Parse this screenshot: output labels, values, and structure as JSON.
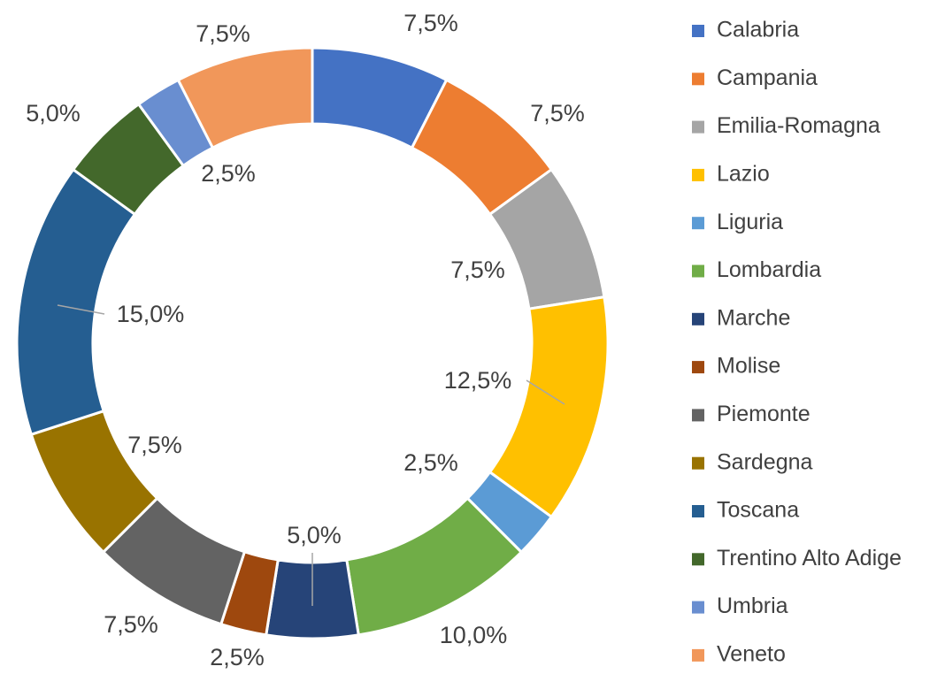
{
  "chart_data": {
    "type": "donut",
    "categories": [
      "Calabria",
      "Campania",
      "Emilia-Romagna",
      "Lazio",
      "Liguria",
      "Lombardia",
      "Marche",
      "Molise",
      "Piemonte",
      "Sardegna",
      "Toscana",
      "Trentino Alto Adige",
      "Umbria",
      "Veneto"
    ],
    "values": [
      7.5,
      7.5,
      7.5,
      12.5,
      2.5,
      10,
      5,
      2.5,
      7.5,
      7.5,
      15,
      5,
      2.5,
      7.5
    ],
    "value_labels": [
      "7,5%",
      "7,5%",
      "7,5%",
      "12,5%",
      "2,5%",
      "10,0%",
      "5,0%",
      "2,5%",
      "7,5%",
      "7,5%",
      "15,0%",
      "5,0%",
      "2,5%",
      "7,5%"
    ],
    "colors": [
      "#4472C4",
      "#ED7D31",
      "#A5A5A5",
      "#FFC000",
      "#5B9BD5",
      "#70AD47",
      "#264478",
      "#9E480E",
      "#636363",
      "#997300",
      "#255E91",
      "#43682B",
      "#698ED0",
      "#F1975A"
    ],
    "legend": "right"
  }
}
